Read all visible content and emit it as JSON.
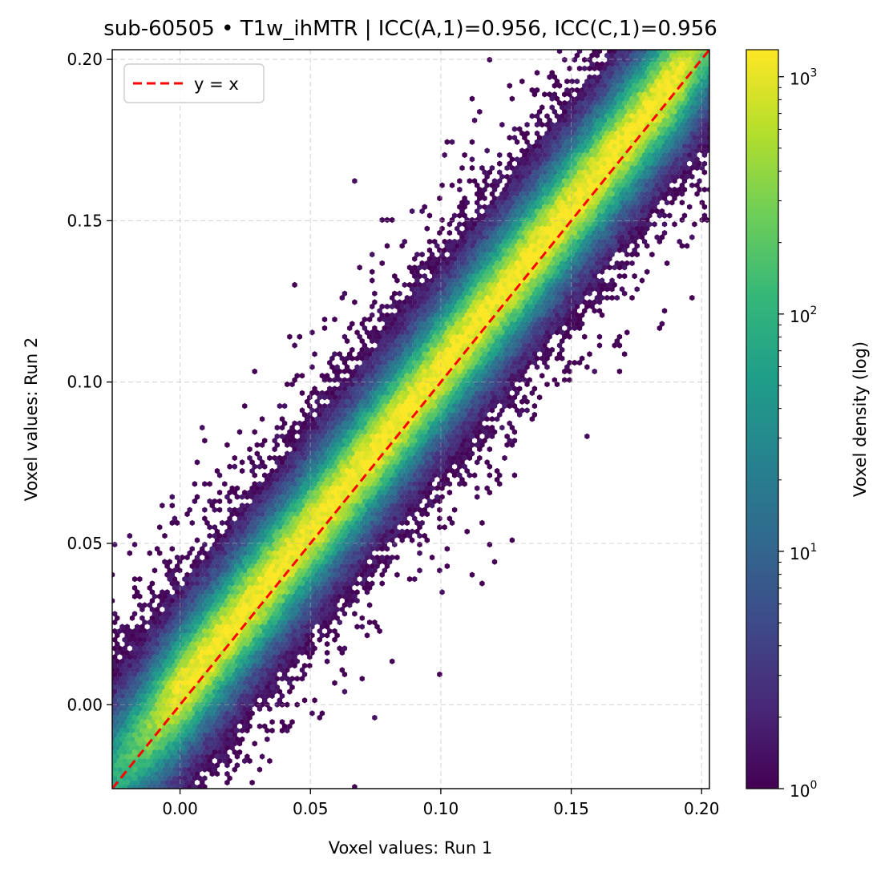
{
  "chart_data": {
    "type": "hexbin",
    "title": "sub-60505 • T1w_ihMTR | ICC(A,1)=0.956, ICC(C,1)=0.956",
    "xlabel": "Voxel values: Run 1",
    "ylabel": "Voxel values: Run 2",
    "xlim": [
      -0.026,
      0.203
    ],
    "ylim": [
      -0.026,
      0.203
    ],
    "x_ticks": [
      0.0,
      0.05,
      0.1,
      0.15,
      0.2
    ],
    "x_tick_labels": [
      "0.00",
      "0.05",
      "0.10",
      "0.15",
      "0.20"
    ],
    "y_ticks": [
      0.0,
      0.05,
      0.1,
      0.15,
      0.2
    ],
    "y_tick_labels": [
      "0.00",
      "0.05",
      "0.10",
      "0.15",
      "0.20"
    ],
    "grid": true,
    "legend": {
      "placement": "upper-left",
      "entries": [
        {
          "label": "y = x",
          "color": "#ff0000",
          "style": "dashed"
        }
      ]
    },
    "reference_line": {
      "name": "y = x",
      "slope": 1,
      "intercept": 0
    },
    "density": {
      "center_line": {
        "slope": 1.0,
        "intercept": 0.004
      },
      "spread_sd": 0.012,
      "x_range": [
        -0.03,
        0.205
      ],
      "peak_count": 1300
    },
    "colorbar": {
      "label": "Voxel density (log)",
      "scale": "log",
      "range": [
        1,
        1300
      ],
      "ticks": [
        1,
        10,
        100,
        1000
      ],
      "tick_labels": [
        [
          "10",
          "0"
        ],
        [
          "10",
          "1"
        ],
        [
          "10",
          "2"
        ],
        [
          "10",
          "3"
        ]
      ],
      "colormap": "viridis"
    }
  },
  "colors": {
    "viridis_stops": [
      "#440154",
      "#482878",
      "#3e4a89",
      "#31688e",
      "#26828e",
      "#1f9e89",
      "#35b779",
      "#6ece58",
      "#b5de2b",
      "#fde725"
    ],
    "grid": "#b0b0b0",
    "reference_line": "#ff0000"
  }
}
